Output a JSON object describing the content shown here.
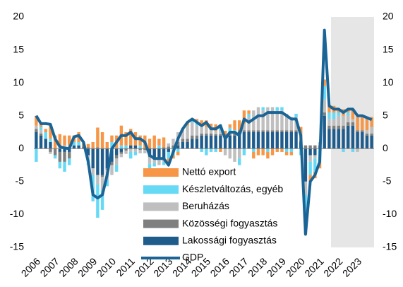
{
  "chart_data": {
    "type": "bar",
    "categories": [
      "2006",
      null,
      null,
      null,
      "2007",
      null,
      null,
      null,
      "2008",
      null,
      null,
      null,
      "2009",
      null,
      null,
      null,
      "2010",
      null,
      null,
      null,
      "2011",
      null,
      null,
      null,
      "2012",
      null,
      null,
      null,
      "2013",
      null,
      null,
      null,
      "2014",
      null,
      null,
      null,
      "2015",
      null,
      null,
      null,
      "2016",
      null,
      null,
      null,
      "2017",
      null,
      null,
      null,
      "2018",
      null,
      null,
      null,
      "2019",
      null,
      null,
      null,
      "2020",
      null,
      null,
      null,
      "2021",
      null,
      null,
      null,
      "2022",
      null,
      null,
      null,
      "2023",
      null,
      null,
      null
    ],
    "series": [
      {
        "name": "Nettó export",
        "color": "#f79646",
        "values": [
          1.5,
          0.5,
          0.5,
          2,
          2,
          2,
          1.5,
          1.5,
          1,
          1.5,
          0.5,
          0.5,
          1,
          3,
          2.5,
          1,
          1,
          2,
          3,
          2,
          2.5,
          2,
          1.5,
          2,
          1.5,
          2,
          1,
          1.5,
          -1,
          -0.5,
          -0.5,
          0,
          0.5,
          0,
          0.5,
          0.5,
          1,
          1,
          1,
          -0.5,
          0.5,
          0.5,
          1.5,
          1.5,
          2,
          0.5,
          -1,
          -1,
          -1,
          -1,
          -1,
          -0.5,
          -0.5,
          -0.5,
          -0.5,
          0,
          1.5,
          -2,
          -1,
          -1,
          -1,
          1,
          1,
          1,
          0.5,
          1,
          0.5,
          1.5,
          2,
          2,
          2,
          1.5
        ]
      },
      {
        "name": "Készletváltozás, egyéb",
        "color": "#66d9f5",
        "values": [
          -2,
          0.5,
          1,
          0.5,
          -0.5,
          -1,
          -1.5,
          -1,
          0.5,
          0.5,
          0,
          -1,
          -4,
          -5,
          -3,
          -1,
          1,
          -1,
          0.5,
          0.5,
          -1,
          -0.5,
          0.5,
          0,
          -1,
          -0.5,
          0.5,
          -0.5,
          -1,
          -1,
          -0.5,
          0,
          0,
          0.5,
          0.5,
          -0.5,
          -1,
          -0.5,
          -0.5,
          1,
          0,
          1,
          0.5,
          -1,
          -1,
          0.5,
          -0.5,
          0,
          0.5,
          -0.5,
          0,
          0.5,
          0.5,
          -0.5,
          -0.5,
          0.5,
          -1,
          -4,
          -2,
          -2,
          -2,
          2,
          1,
          1,
          0.5,
          -0.5,
          0.5,
          -0.5,
          0,
          0,
          0,
          0
        ]
      },
      {
        "name": "Beruházás",
        "color": "#bfbfbf",
        "values": [
          0.5,
          0.5,
          0,
          -0.3,
          0,
          0.2,
          0.5,
          0.5,
          0,
          0,
          0,
          -0.5,
          -1,
          -1.5,
          -2,
          -1.5,
          -1.5,
          -1,
          -0.5,
          -0.5,
          -0.5,
          -0.5,
          -0.5,
          -0.5,
          -1,
          -0.5,
          -1,
          -0.5,
          0.5,
          1,
          1.5,
          1.5,
          2,
          2,
          1.5,
          1.5,
          1,
          0.5,
          0.5,
          0.5,
          -1,
          -1.5,
          -2,
          -1.5,
          1,
          2,
          3,
          3.5,
          3,
          3.5,
          3.5,
          3,
          3,
          2.5,
          2,
          2,
          0.5,
          -2,
          -1,
          -0.5,
          0.5,
          2,
          1,
          1,
          1.5,
          1.5,
          1,
          0.5,
          -0.5,
          0,
          0.5,
          1
        ]
      },
      {
        "name": "Közösségi fogyasztás",
        "color": "#7f7f7f",
        "values": [
          0.5,
          0.3,
          0,
          -0.5,
          -1,
          -1.5,
          -1.5,
          -1,
          0,
          0,
          0.3,
          0.2,
          0,
          0.2,
          -0.3,
          -0.2,
          -0.5,
          -0.5,
          -0.3,
          -0.3,
          0,
          0,
          -0.2,
          -0.2,
          -0.3,
          -0.2,
          0,
          0.2,
          0.3,
          0.5,
          0.5,
          0.5,
          0.5,
          0.5,
          0.5,
          0.3,
          0.3,
          0.3,
          0.2,
          0.2,
          0.2,
          0.2,
          0.3,
          0.3,
          0.3,
          0.3,
          0.3,
          0.3,
          0.3,
          0.3,
          0.3,
          0.3,
          0.3,
          0.3,
          0.3,
          0.3,
          0.3,
          0.5,
          0.5,
          0.5,
          0.5,
          0.5,
          0.5,
          0.5,
          0.5,
          0.5,
          0.5,
          0.5,
          0.3,
          0.3,
          0.3,
          0.3
        ]
      },
      {
        "name": "Lakossági fogyasztás",
        "color": "#1f5c8c",
        "values": [
          2.5,
          2,
          1.5,
          1,
          0,
          -0.5,
          -0.5,
          -0.5,
          0.5,
          0.5,
          0,
          -1,
          -3,
          -4,
          -4,
          -3,
          -2,
          -1,
          -0.5,
          0,
          0.5,
          0.5,
          0,
          0,
          -1,
          -1.5,
          -1.5,
          -1.5,
          -0.5,
          0,
          0.5,
          1,
          1,
          1.5,
          1.5,
          2,
          2,
          2,
          2,
          2,
          2,
          2,
          2,
          2.5,
          2.5,
          2.5,
          2.5,
          2.5,
          2.5,
          2.5,
          2.5,
          2.5,
          2.5,
          2.5,
          2.5,
          2.5,
          1,
          -5,
          -1,
          -1,
          0,
          5,
          3,
          3,
          3,
          3,
          3.5,
          3.5,
          2.5,
          2.5,
          2,
          2
        ]
      },
      {
        "name": "GDP",
        "color": "#1a6496",
        "type": "line",
        "values": [
          5,
          3.8,
          3.8,
          3.7,
          1.5,
          0.3,
          0.1,
          0,
          1.8,
          2,
          1,
          -2,
          -7,
          -7.5,
          -7,
          -4,
          0,
          1,
          2,
          2,
          2.5,
          1.5,
          1.5,
          1,
          -1,
          -1.5,
          -1.5,
          -1.5,
          -2.5,
          -0.5,
          1.5,
          3,
          4,
          4.5,
          4,
          3.5,
          4,
          3,
          3,
          3.5,
          1.5,
          2.5,
          2.5,
          2,
          4.5,
          4,
          4.5,
          5,
          5,
          5.5,
          5.5,
          5.5,
          5.5,
          5,
          4.5,
          4.5,
          2,
          -13,
          -5,
          -4,
          -2,
          18,
          6.5,
          6,
          6,
          5.5,
          6,
          6,
          5,
          5,
          4.7,
          4.4
        ]
      }
    ],
    "ylim": [
      -15,
      20
    ],
    "yticks": [
      -15,
      -10,
      -5,
      0,
      5,
      10,
      15,
      20
    ],
    "y2lim": [
      -15,
      20
    ],
    "y2ticks": [
      -15,
      -10,
      -5,
      0,
      5,
      10,
      15,
      20
    ],
    "grid": false
  }
}
